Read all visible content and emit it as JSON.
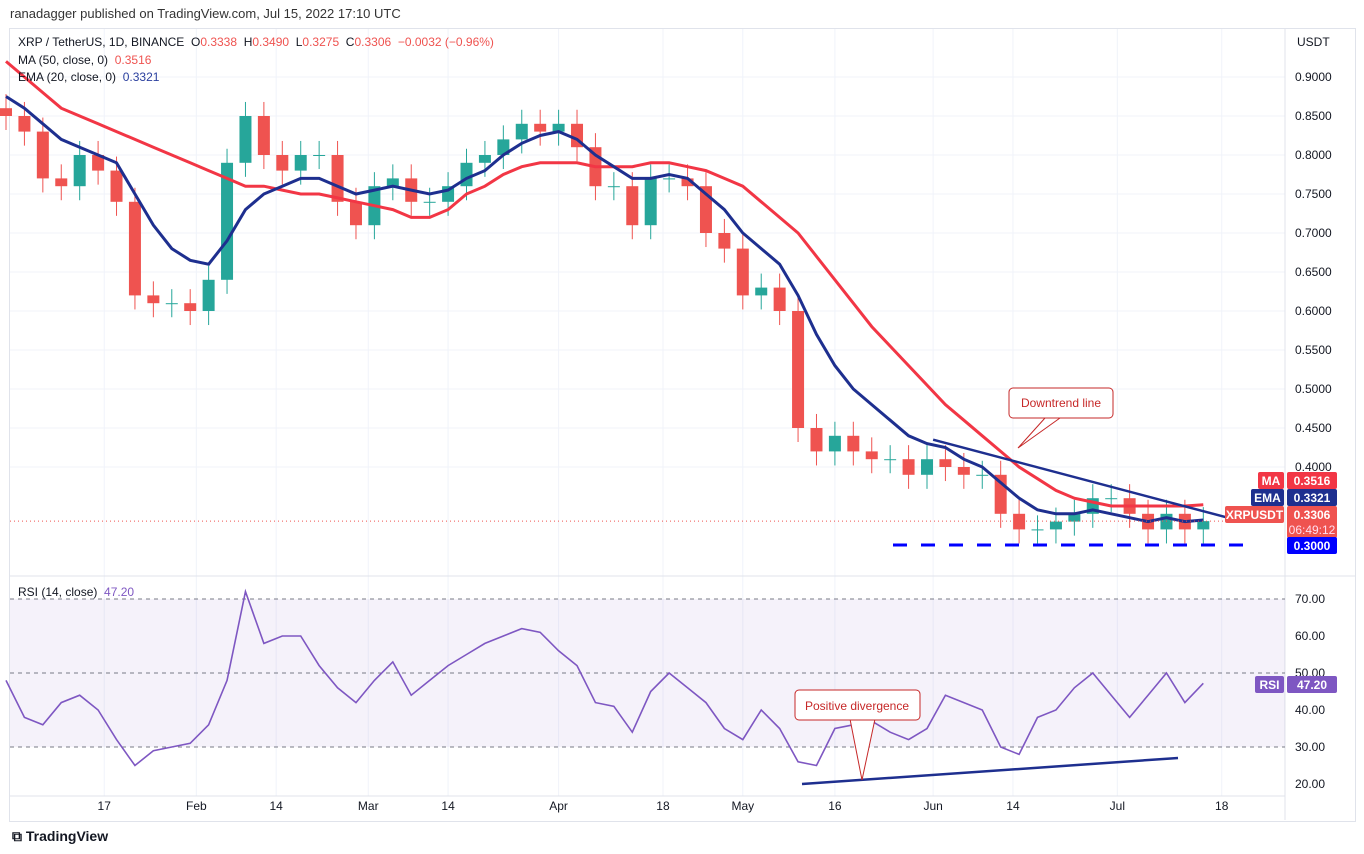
{
  "header": {
    "published": "ranadagger published on TradingView.com, Jul 15, 2022 17:10 UTC"
  },
  "legend": {
    "symbol": "XRP / TetherUS, 1D, BINANCE",
    "o_label": "O",
    "o": "0.3338",
    "h_label": "H",
    "h": "0.3490",
    "l_label": "L",
    "l": "0.3275",
    "c_label": "C",
    "c": "0.3306",
    "change": "−0.0032 (−0.96%)",
    "ma_label": "MA (50, close, 0)",
    "ma_value": "0.3516",
    "ema_label": "EMA (20, close, 0)",
    "ema_value": "0.3321",
    "rsi_label": "RSI (14, close)",
    "rsi_value": "47.20"
  },
  "footer": {
    "brand": "TradingView"
  },
  "colors": {
    "up": "#26a69a",
    "down": "#ef5350",
    "ma": "#f23645",
    "ema": "#1e2f8f",
    "rsi": "#7e57c2",
    "support": "#0000ff"
  },
  "chart_data": [
    {
      "type": "candlestick",
      "title": "XRP / TetherUS, 1D, BINANCE",
      "ylabel": "USDT",
      "ylim": [
        0.27,
        0.93
      ],
      "yticks": [
        "0.9000",
        "0.8500",
        "0.8000",
        "0.7500",
        "0.7000",
        "0.6500",
        "0.6000",
        "0.5500",
        "0.5000",
        "0.4500",
        "0.4000"
      ],
      "xticks": [
        {
          "day": 16,
          "label": "17"
        },
        {
          "day": 31,
          "label": "Feb"
        },
        {
          "day": 44,
          "label": "14"
        },
        {
          "day": 59,
          "label": "Mar"
        },
        {
          "day": 72,
          "label": "14"
        },
        {
          "day": 90,
          "label": "Apr"
        },
        {
          "day": 107,
          "label": "18"
        },
        {
          "day": 120,
          "label": "May"
        },
        {
          "day": 135,
          "label": "16"
        },
        {
          "day": 151,
          "label": "Jun"
        },
        {
          "day": 164,
          "label": "14"
        },
        {
          "day": 181,
          "label": "Jul"
        },
        {
          "day": 198,
          "label": "18"
        }
      ],
      "day_step": 3,
      "close": [
        0.85,
        0.83,
        0.77,
        0.76,
        0.8,
        0.78,
        0.74,
        0.62,
        0.61,
        0.61,
        0.6,
        0.64,
        0.79,
        0.85,
        0.8,
        0.78,
        0.8,
        0.8,
        0.74,
        0.71,
        0.76,
        0.77,
        0.74,
        0.74,
        0.76,
        0.79,
        0.8,
        0.82,
        0.84,
        0.83,
        0.84,
        0.81,
        0.76,
        0.76,
        0.71,
        0.77,
        0.77,
        0.76,
        0.7,
        0.68,
        0.62,
        0.63,
        0.6,
        0.45,
        0.42,
        0.44,
        0.42,
        0.41,
        0.41,
        0.39,
        0.41,
        0.4,
        0.39,
        0.39,
        0.34,
        0.32,
        0.32,
        0.33,
        0.34,
        0.36,
        0.36,
        0.34,
        0.32,
        0.34,
        0.32,
        0.3306
      ],
      "ma50": [
        0.92,
        0.9,
        0.88,
        0.86,
        0.85,
        0.84,
        0.83,
        0.82,
        0.81,
        0.8,
        0.79,
        0.78,
        0.77,
        0.76,
        0.76,
        0.755,
        0.75,
        0.75,
        0.745,
        0.74,
        0.735,
        0.73,
        0.72,
        0.72,
        0.73,
        0.75,
        0.76,
        0.775,
        0.785,
        0.79,
        0.79,
        0.79,
        0.785,
        0.785,
        0.785,
        0.79,
        0.79,
        0.785,
        0.78,
        0.77,
        0.76,
        0.74,
        0.72,
        0.7,
        0.67,
        0.64,
        0.61,
        0.58,
        0.555,
        0.53,
        0.505,
        0.48,
        0.46,
        0.44,
        0.42,
        0.4,
        0.385,
        0.37,
        0.36,
        0.355,
        0.35,
        0.35,
        0.35,
        0.35,
        0.35,
        0.3516
      ],
      "ema20": [
        0.875,
        0.86,
        0.84,
        0.82,
        0.81,
        0.8,
        0.79,
        0.75,
        0.71,
        0.68,
        0.665,
        0.66,
        0.69,
        0.73,
        0.75,
        0.76,
        0.77,
        0.77,
        0.76,
        0.75,
        0.755,
        0.76,
        0.755,
        0.75,
        0.755,
        0.77,
        0.78,
        0.8,
        0.815,
        0.825,
        0.83,
        0.82,
        0.8,
        0.785,
        0.77,
        0.77,
        0.775,
        0.77,
        0.75,
        0.73,
        0.7,
        0.68,
        0.66,
        0.62,
        0.57,
        0.53,
        0.5,
        0.48,
        0.46,
        0.44,
        0.43,
        0.425,
        0.41,
        0.4,
        0.38,
        0.36,
        0.345,
        0.34,
        0.34,
        0.345,
        0.34,
        0.335,
        0.33,
        0.335,
        0.33,
        0.3321
      ],
      "labels": {
        "ma": "MA",
        "ma_val": "0.3516",
        "ema": "EMA",
        "ema_val": "0.3321",
        "sym": "XRPUSDT",
        "last": "0.3306",
        "countdown": "06:49:12",
        "support": "0.3000"
      },
      "annotations": {
        "downtrend": "Downtrend line",
        "support_level": 0.3
      }
    },
    {
      "type": "line",
      "title": "RSI (14, close)",
      "ylim": [
        18,
        75
      ],
      "yticks": [
        "70.00",
        "60.00",
        "50.00",
        "40.00",
        "30.00",
        "20.00"
      ],
      "rsi": [
        48,
        38,
        36,
        42,
        44,
        40,
        32,
        25,
        29,
        30,
        31,
        36,
        48,
        72,
        58,
        60,
        60,
        52,
        46,
        42,
        48,
        53,
        44,
        48,
        52,
        55,
        58,
        60,
        62,
        61,
        56,
        52,
        42,
        41,
        34,
        45,
        50,
        46,
        42,
        35,
        32,
        40,
        35,
        26,
        25,
        35,
        36,
        37,
        34,
        32,
        35,
        44,
        42,
        40,
        30,
        28,
        38,
        40,
        46,
        50,
        44,
        38,
        44,
        50,
        42,
        47.2
      ],
      "labels": {
        "rsi": "RSI",
        "rsi_val": "47.20"
      },
      "annotations": {
        "divergence": "Positive divergence"
      }
    }
  ]
}
